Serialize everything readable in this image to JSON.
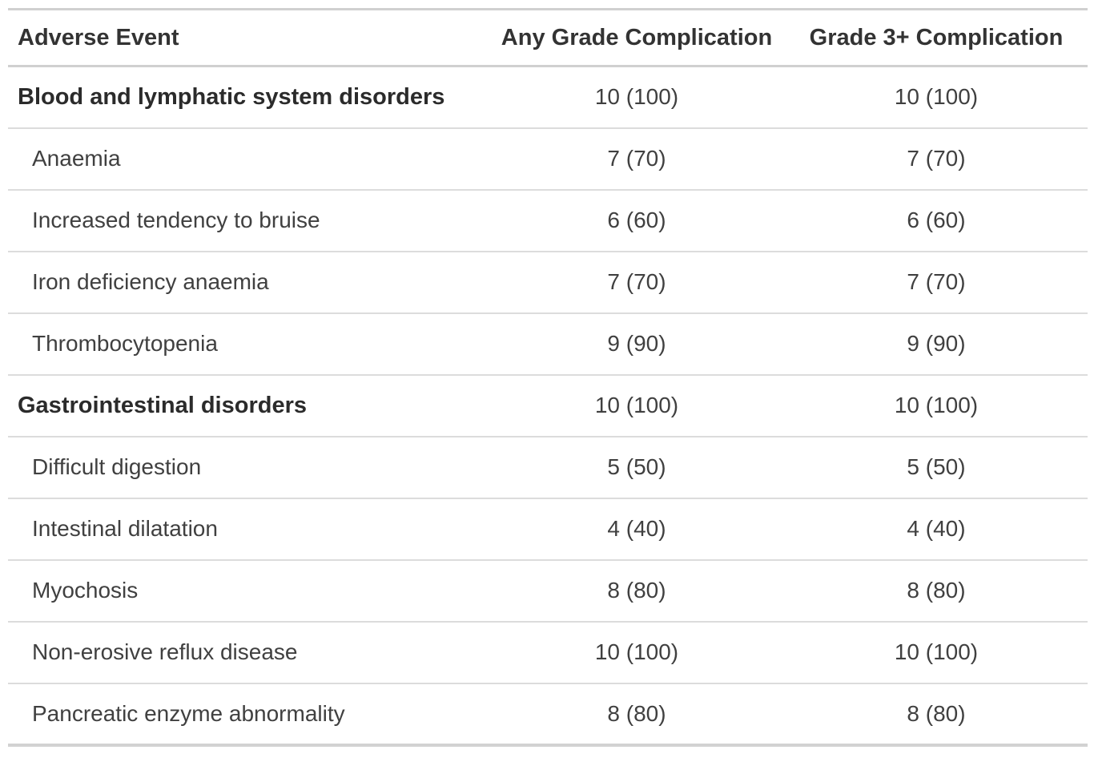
{
  "colors": {
    "background": "#ffffff",
    "outer_border": "#d0d0d0",
    "row_separator": "#dcdcdc",
    "header_text": "#333333",
    "group_text": "#2b2b2b",
    "body_text": "#404040"
  },
  "chart_data": {
    "type": "table",
    "columns": [
      "Adverse Event",
      "Any Grade Complication",
      "Grade 3+ Complication"
    ],
    "rows": [
      {
        "label": "Blood and lymphatic system disorders",
        "group": true,
        "any_grade": "10 (100)",
        "grade3plus": "10 (100)"
      },
      {
        "label": "Anaemia",
        "group": false,
        "any_grade": "7 (70)",
        "grade3plus": "7 (70)"
      },
      {
        "label": "Increased tendency to bruise",
        "group": false,
        "any_grade": "6 (60)",
        "grade3plus": "6 (60)"
      },
      {
        "label": "Iron deficiency anaemia",
        "group": false,
        "any_grade": "7 (70)",
        "grade3plus": "7 (70)"
      },
      {
        "label": "Thrombocytopenia",
        "group": false,
        "any_grade": "9 (90)",
        "grade3plus": "9 (90)"
      },
      {
        "label": "Gastrointestinal disorders",
        "group": true,
        "any_grade": "10 (100)",
        "grade3plus": "10 (100)"
      },
      {
        "label": "Difficult digestion",
        "group": false,
        "any_grade": "5 (50)",
        "grade3plus": "5 (50)"
      },
      {
        "label": "Intestinal dilatation",
        "group": false,
        "any_grade": "4 (40)",
        "grade3plus": "4 (40)"
      },
      {
        "label": "Myochosis",
        "group": false,
        "any_grade": "8 (80)",
        "grade3plus": "8 (80)"
      },
      {
        "label": "Non-erosive reflux disease",
        "group": false,
        "any_grade": "10 (100)",
        "grade3plus": "10 (100)"
      },
      {
        "label": "Pancreatic enzyme abnormality",
        "group": false,
        "any_grade": "8 (80)",
        "grade3plus": "8 (80)"
      }
    ]
  }
}
